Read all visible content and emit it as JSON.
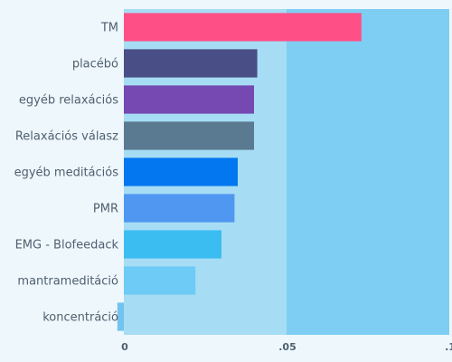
{
  "chart_data": {
    "type": "bar",
    "orientation": "horizontal",
    "categories": [
      "TM",
      "placébó",
      "egyéb relaxációs",
      "Relaxációs válasz",
      "egyéb meditációs",
      "PMR",
      "EMG - Blofeedack",
      "mantrameditáció",
      "koncentráció"
    ],
    "values": [
      0.073,
      0.041,
      0.04,
      0.04,
      0.035,
      0.034,
      0.03,
      0.022,
      -0.002
    ],
    "colors": [
      "#ff4f87",
      "#4a4e86",
      "#7548b2",
      "#5a7a92",
      "#0277f0",
      "#4f97f0",
      "#3cbdf2",
      "#6dcbf6",
      "#73c3ef"
    ],
    "xlim": [
      0,
      0.1
    ],
    "xticks": [
      0,
      0.05,
      0.1
    ],
    "xtick_labels": [
      "0",
      ".05",
      ".1"
    ],
    "band_colors": [
      "#a6ddf4",
      "#7ecef3"
    ],
    "grid": false,
    "title": "",
    "xlabel": "",
    "ylabel": ""
  }
}
